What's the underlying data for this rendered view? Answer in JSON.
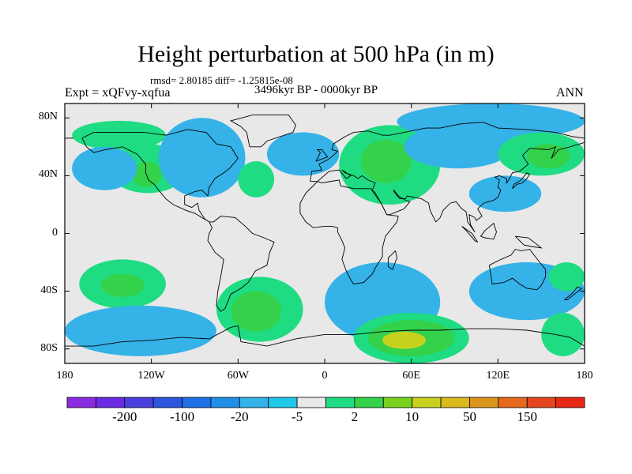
{
  "title": "Height perturbation at 500 hPa (in m)",
  "stats": "rmsd= 2.80185 diff= -1.25815e-08",
  "expt": "Expt = xQFvy-xqfua",
  "period": "3496kyr BP - 0000kyr BP",
  "season": "ANN",
  "axes": {
    "y_ticks": [
      {
        "label": "80N",
        "lat": 80
      },
      {
        "label": "40N",
        "lat": 40
      },
      {
        "label": "0",
        "lat": 0
      },
      {
        "label": "40S",
        "lat": -40
      },
      {
        "label": "80S",
        "lat": -80
      }
    ],
    "x_ticks": [
      {
        "label": "180",
        "lon": -180
      },
      {
        "label": "120W",
        "lon": -120
      },
      {
        "label": "60W",
        "lon": -60
      },
      {
        "label": "0",
        "lon": 0
      },
      {
        "label": "60E",
        "lon": 60
      },
      {
        "label": "120E",
        "lon": 120
      },
      {
        "label": "180",
        "lon": 180
      }
    ]
  },
  "colorbar": {
    "colors": [
      "#8a2be2",
      "#6a2be2",
      "#4b3fe0",
      "#2e55e0",
      "#1e6ee6",
      "#1e90e8",
      "#35b2e8",
      "#1ec8e6",
      "#e8e8e8",
      "#1fdc82",
      "#33d24a",
      "#7ad21e",
      "#c8d21e",
      "#dcb91e",
      "#dc961e",
      "#e66a1e",
      "#e6461e",
      "#e62814"
    ],
    "labels": [
      {
        "text": "-200",
        "boundary": 2
      },
      {
        "text": "-100",
        "boundary": 4
      },
      {
        "text": "-20",
        "boundary": 6
      },
      {
        "text": "-5",
        "boundary": 8
      },
      {
        "text": "2",
        "boundary": 10
      },
      {
        "text": "10",
        "boundary": 12
      },
      {
        "text": "50",
        "boundary": 14
      },
      {
        "text": "150",
        "boundary": 16
      }
    ]
  },
  "map_data": {
    "region": "Global (180W-180E, 90S-90N)",
    "background_color": "#e8e8e8",
    "anomaly_regions": [
      {
        "name": "north-pacific-positive",
        "color": "#1fdc82",
        "lon": [
          -175,
          -110
        ],
        "lat": [
          58,
          78
        ]
      },
      {
        "name": "western-north-america-positive",
        "color": "#1fdc82",
        "lon": [
          -150,
          -95
        ],
        "lat": [
          28,
          62
        ]
      },
      {
        "name": "western-north-america-core",
        "color": "#33d24a",
        "lon": [
          -133,
          -113
        ],
        "lat": [
          32,
          50
        ]
      },
      {
        "name": "north-pacific-negative",
        "color": "#35b2e8",
        "lon": [
          -175,
          -130
        ],
        "lat": [
          30,
          60
        ]
      },
      {
        "name": "north-america-negative",
        "color": "#35b2e8",
        "lon": [
          -115,
          -55
        ],
        "lat": [
          25,
          80
        ]
      },
      {
        "name": "west-atlantic-positive",
        "color": "#1fdc82",
        "lon": [
          -60,
          -35
        ],
        "lat": [
          25,
          50
        ]
      },
      {
        "name": "north-atlantic-negative",
        "color": "#35b2e8",
        "lon": [
          -40,
          10
        ],
        "lat": [
          40,
          70
        ]
      },
      {
        "name": "eurasia-positive",
        "color": "#1fdc82",
        "lon": [
          10,
          80
        ],
        "lat": [
          20,
          75
        ]
      },
      {
        "name": "eurasia-core",
        "color": "#33d24a",
        "lon": [
          25,
          60
        ],
        "lat": [
          35,
          65
        ]
      },
      {
        "name": "arctic-eurasia-negative",
        "color": "#35b2e8",
        "lon": [
          50,
          180
        ],
        "lat": [
          65,
          90
        ]
      },
      {
        "name": "siberia-negative",
        "color": "#35b2e8",
        "lon": [
          55,
          130
        ],
        "lat": [
          45,
          75
        ]
      },
      {
        "name": "northeast-asia-positive",
        "color": "#1fdc82",
        "lon": [
          120,
          180
        ],
        "lat": [
          40,
          70
        ]
      },
      {
        "name": "northeast-asia-core",
        "color": "#33d24a",
        "lon": [
          140,
          170
        ],
        "lat": [
          45,
          62
        ]
      },
      {
        "name": "western-pacific-negative",
        "color": "#35b2e8",
        "lon": [
          100,
          150
        ],
        "lat": [
          15,
          40
        ]
      },
      {
        "name": "south-pacific-positive",
        "color": "#1fdc82",
        "lon": [
          -170,
          -110
        ],
        "lat": [
          -52,
          -18
        ]
      },
      {
        "name": "south-pacific-core",
        "color": "#33d24a",
        "lon": [
          -155,
          -125
        ],
        "lat": [
          -44,
          -28
        ]
      },
      {
        "name": "south-atlantic-positive",
        "color": "#1fdc82",
        "lon": [
          -75,
          -15
        ],
        "lat": [
          -75,
          -30
        ]
      },
      {
        "name": "south-atlantic-core",
        "color": "#33d24a",
        "lon": [
          -65,
          -30
        ],
        "lat": [
          -68,
          -40
        ]
      },
      {
        "name": "southern-ocean-negative-west",
        "color": "#35b2e8",
        "lon": [
          -180,
          -75
        ],
        "lat": [
          -85,
          -50
        ]
      },
      {
        "name": "indian-ocean-negative",
        "color": "#35b2e8",
        "lon": [
          0,
          80
        ],
        "lat": [
          -75,
          -20
        ]
      },
      {
        "name": "antarctic-positive",
        "color": "#1fdc82",
        "lon": [
          20,
          100
        ],
        "lat": [
          -90,
          -55
        ]
      },
      {
        "name": "antarctic-core",
        "color": "#33d24a",
        "lon": [
          30,
          90
        ],
        "lat": [
          -85,
          -60
        ]
      },
      {
        "name": "antarctic-peak",
        "color": "#c8d21e",
        "lon": [
          40,
          70
        ],
        "lat": [
          -80,
          -68
        ]
      },
      {
        "name": "australia-negative",
        "color": "#35b2e8",
        "lon": [
          100,
          180
        ],
        "lat": [
          -60,
          -20
        ]
      },
      {
        "name": "south-pacific-east-positive",
        "color": "#1fdc82",
        "lon": [
          150,
          180
        ],
        "lat": [
          -85,
          -55
        ]
      },
      {
        "name": "west-pacific-south-positive",
        "color": "#1fdc82",
        "lon": [
          155,
          180
        ],
        "lat": [
          -40,
          -20
        ]
      }
    ]
  }
}
